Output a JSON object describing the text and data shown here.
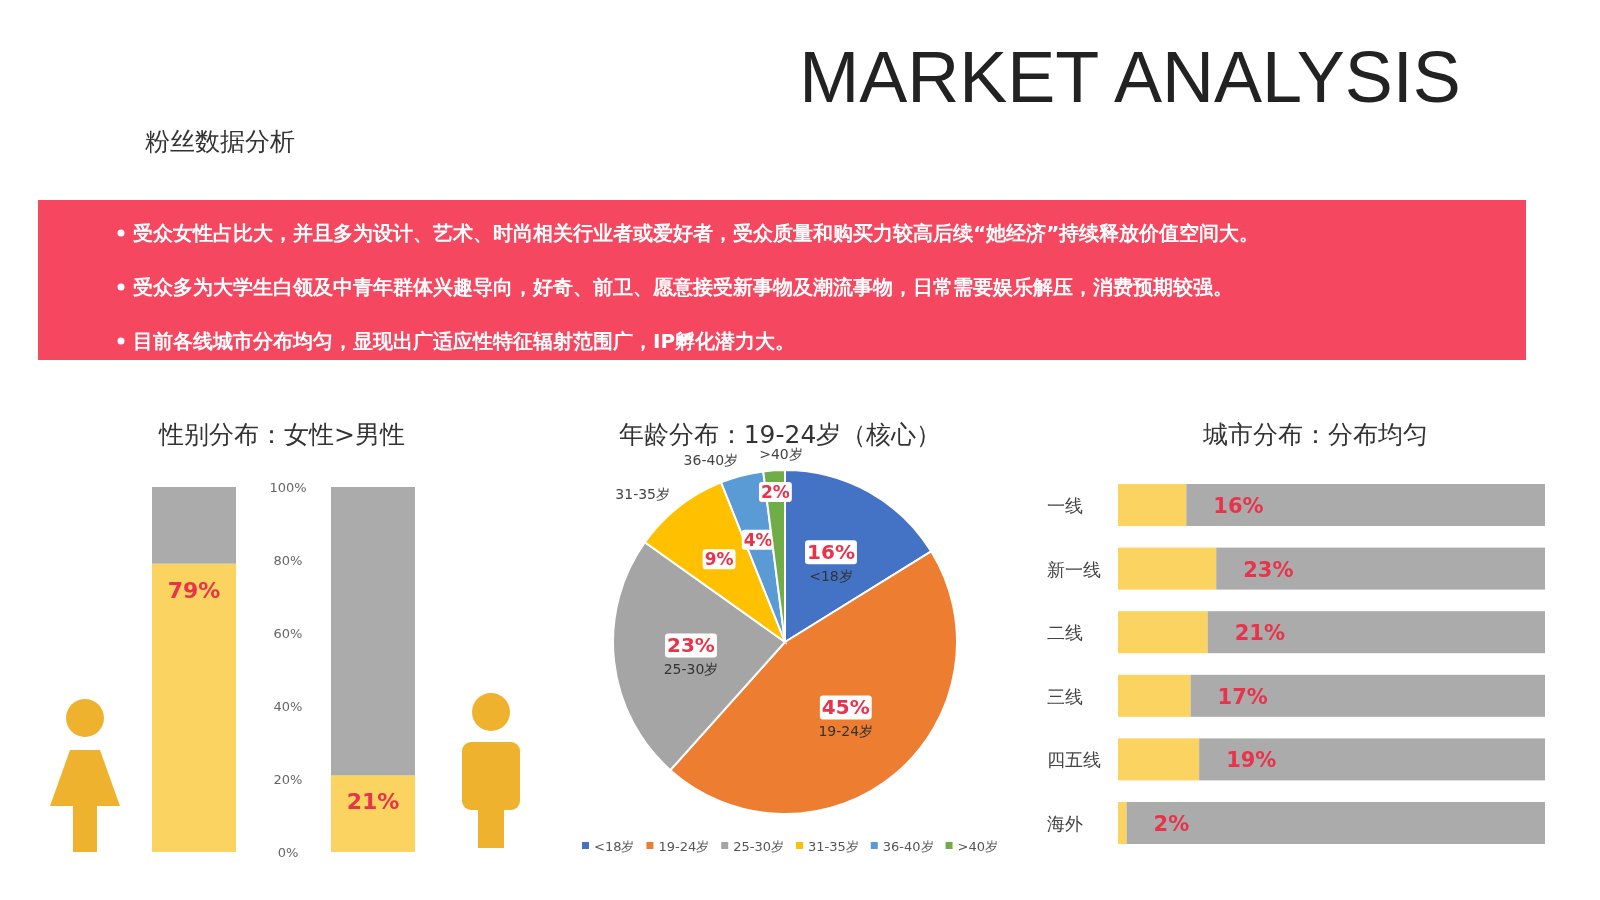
{
  "chart_data": [
    {
      "type": "other",
      "title": "MARKET ANALYSIS",
      "subtitle": "粉丝数据分析",
      "annotations": [
        "受众女性占比大，并且多为设计、艺术、时尚相关行业者或爱好者，受众质量和购买力较高后续“她经济”持续释放价值空间大。",
        "受众多为大学生白领及中青年群体兴趣导向，好奇、前卫、愿意接受新事物及潮流事物，日常需要娱乐解压，消费预期较强。",
        "目前各线城市分布均匀，显现出广适应性特征辐射范围广，IP孵化潜力大。"
      ]
    },
    {
      "type": "bar",
      "title": "性别分布：女性>男性",
      "categories": [
        null,
        null
      ],
      "stacked": true,
      "series": [
        {
          "color": "#fad361",
          "values": [
            79,
            21
          ],
          "value_labels": [
            "79%",
            "21%"
          ]
        },
        {
          "color": "#ababab",
          "values": [
            21,
            79
          ]
        }
      ],
      "ylim": [
        0,
        100
      ],
      "yticks": [
        {
          "value": 0,
          "label": "0%"
        },
        {
          "value": 20,
          "label": "20%"
        },
        {
          "value": 40,
          "label": "40%"
        },
        {
          "value": 60,
          "label": "60%"
        },
        {
          "value": 80,
          "label": "80%"
        },
        {
          "value": 100,
          "label": "100%"
        }
      ],
      "tick_labels": "y"
    },
    {
      "type": "pie",
      "title": "年龄分布：19-24岁（核心）",
      "categories": [
        "<18岁",
        "19-24岁",
        "25-30岁",
        "31-35岁",
        "36-40岁",
        ">40岁"
      ],
      "values": [
        16,
        45,
        23,
        9,
        4,
        2
      ],
      "colors": [
        "#4472c4",
        "#ed7d31",
        "#a5a5a5",
        "#ffc000",
        "#5b9bd5",
        "#70ad47"
      ],
      "value_labels": [
        "16%",
        "45%",
        "23%",
        "9%",
        "4%",
        "2%"
      ],
      "legend": "bottom"
    },
    {
      "type": "bar",
      "orientation": "horizontal",
      "stacked": true,
      "title": "城市分布：分布均匀",
      "categories": [
        "一线",
        "新一线",
        "二线",
        "三线",
        "四五线",
        "海外"
      ],
      "series": [
        {
          "color": "#fad361",
          "values": [
            16,
            23,
            21,
            17,
            19,
            2
          ],
          "value_labels": [
            "16%",
            "23%",
            "21%",
            "17%",
            "19%",
            "2%"
          ]
        },
        {
          "color": "#ababab",
          "values": [
            84,
            77,
            79,
            83,
            81,
            98
          ]
        }
      ],
      "xlim": [
        0,
        100
      ],
      "tick_labels": "y"
    }
  ]
}
